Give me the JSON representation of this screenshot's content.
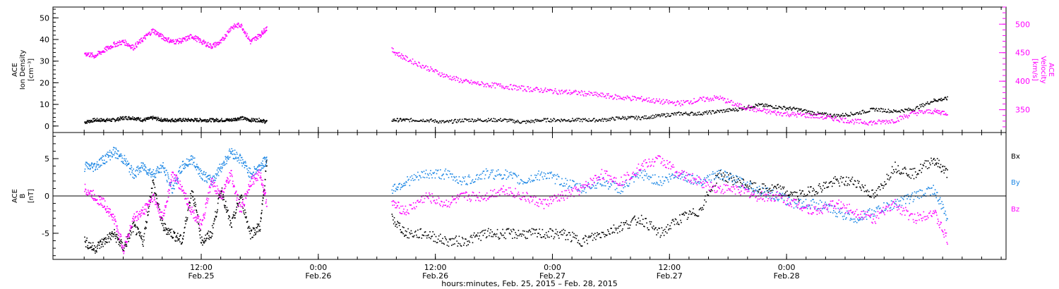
{
  "chart_data": [
    {
      "type": "scatter",
      "panel": "top",
      "ylabel_left": [
        "ACE",
        "Ion Density",
        "[cm⁻³]"
      ],
      "ylabel_right": [
        "ACE",
        "Velocity",
        "[km/s]"
      ],
      "ylim_left": [
        -3,
        55
      ],
      "yticks_left": [
        0,
        10,
        20,
        30,
        40,
        50
      ],
      "ylim_right": [
        310,
        530
      ],
      "yticks_right": [
        350,
        400,
        450,
        500
      ],
      "colors": {
        "density": "#000000",
        "velocity": "#ff00ff"
      },
      "series": [
        {
          "key": "density",
          "axis": "left",
          "segments": [
            {
              "x": [
                0,
                1,
                2,
                3,
                4,
                5,
                6,
                7,
                8,
                9,
                10,
                11,
                12,
                13,
                14,
                15,
                16,
                17,
                18,
                18.7
              ],
              "y": [
                2,
                3,
                3,
                3,
                4,
                4,
                3,
                4,
                3,
                3,
                3,
                3,
                3,
                3,
                3,
                3,
                4,
                3,
                3,
                2
              ]
            },
            {
              "x": [
                31.5,
                33,
                35,
                37,
                39,
                41,
                43,
                45,
                47,
                49,
                51,
                53,
                55,
                57,
                59,
                61,
                63,
                65,
                67,
                69,
                71,
                73,
                75,
                77,
                79,
                81,
                83,
                85,
                87,
                88.5
              ],
              "y": [
                3,
                3,
                3,
                2,
                3,
                3,
                3,
                2,
                3,
                3,
                3,
                3,
                4,
                4,
                5,
                6,
                6,
                7,
                8,
                10,
                9,
                8,
                6,
                5,
                6,
                8,
                7,
                8,
                12,
                13
              ]
            }
          ]
        },
        {
          "key": "velocity",
          "axis": "right",
          "segments": [
            {
              "x": [
                0,
                1,
                2,
                3,
                4,
                5,
                6,
                7,
                8,
                9,
                10,
                11,
                12,
                13,
                14,
                15,
                16,
                17,
                18,
                18.7
              ],
              "y": [
                450,
                445,
                455,
                465,
                470,
                460,
                475,
                490,
                478,
                470,
                472,
                480,
                470,
                462,
                470,
                495,
                500,
                470,
                482,
                495
              ]
            },
            {
              "x": [
                31.5,
                33,
                35,
                37,
                39,
                41,
                43,
                45,
                47,
                49,
                51,
                53,
                55,
                57,
                59,
                61,
                63,
                65,
                67,
                69,
                71,
                73,
                75,
                77,
                79,
                81,
                83,
                85,
                87,
                88.5
              ],
              "y": [
                455,
                440,
                425,
                410,
                400,
                395,
                392,
                388,
                385,
                382,
                380,
                376,
                372,
                370,
                365,
                362,
                368,
                372,
                358,
                350,
                345,
                342,
                340,
                335,
                330,
                328,
                332,
                345,
                348,
                345
              ]
            }
          ]
        }
      ]
    },
    {
      "type": "scatter",
      "panel": "bottom",
      "ylabel_left": [
        "ACE",
        "B",
        "[nT]"
      ],
      "ylim": [
        -8.5,
        8.5
      ],
      "yticks": [
        -5,
        0,
        5
      ],
      "zero_line": true,
      "legend": [
        "Bx",
        "By",
        "Bz"
      ],
      "colors": {
        "Bx": "#000000",
        "By": "#1e88e5",
        "Bz": "#ff00ff"
      },
      "series": [
        {
          "name": "Bx",
          "segments": [
            {
              "x": [
                0,
                1,
                2,
                3,
                4,
                5,
                6,
                7,
                8,
                9,
                10,
                11,
                12,
                13,
                14,
                15,
                16,
                17,
                18,
                18.7
              ],
              "y": [
                -6,
                -7,
                -6,
                -5,
                -7,
                -4,
                -6,
                2,
                -4,
                -5,
                -6,
                1,
                -6,
                -5,
                1,
                -4,
                0,
                -5,
                -4,
                5
              ]
            },
            {
              "x": [
                31.5,
                33,
                35,
                37,
                39,
                41,
                43,
                45,
                47,
                49,
                51,
                53,
                55,
                57,
                59,
                61,
                63,
                65,
                67,
                69,
                71,
                73,
                75,
                77,
                79,
                81,
                83,
                85,
                87,
                88.5
              ],
              "y": [
                -3,
                -5,
                -5,
                -6,
                -6,
                -5,
                -5,
                -5,
                -5,
                -5,
                -6,
                -5,
                -4,
                -3,
                -5,
                -3,
                -2,
                3,
                2,
                1,
                1,
                0,
                1,
                2,
                2,
                0,
                4,
                3,
                5,
                3
              ]
            }
          ]
        },
        {
          "name": "By",
          "segments": [
            {
              "x": [
                0,
                1,
                2,
                3,
                4,
                5,
                6,
                7,
                8,
                9,
                10,
                11,
                12,
                13,
                14,
                15,
                16,
                17,
                18,
                18.7
              ],
              "y": [
                4,
                4,
                5,
                6,
                5,
                3,
                4,
                3,
                4,
                1,
                4,
                5,
                3,
                2,
                4,
                6,
                5,
                3,
                4,
                5
              ]
            },
            {
              "x": [
                31.5,
                33,
                35,
                37,
                39,
                41,
                43,
                45,
                47,
                49,
                51,
                53,
                55,
                57,
                59,
                61,
                63,
                65,
                67,
                69,
                71,
                73,
                75,
                77,
                79,
                81,
                83,
                85,
                87,
                88.5
              ],
              "y": [
                1,
                2,
                3,
                3,
                2,
                3,
                3,
                2,
                3,
                2,
                1,
                2,
                1,
                3,
                2,
                3,
                2,
                3,
                2,
                1,
                0,
                -1,
                -1,
                -2,
                -3,
                -2,
                -1,
                0,
                1,
                -3
              ]
            }
          ]
        },
        {
          "name": "Bz",
          "segments": [
            {
              "x": [
                0,
                1,
                2,
                3,
                4,
                5,
                6,
                7,
                8,
                9,
                10,
                11,
                12,
                13,
                14,
                15,
                16,
                17,
                18,
                18.7
              ],
              "y": [
                1,
                0,
                -1,
                -3,
                -7,
                -3,
                -2,
                0,
                -3,
                3,
                1,
                -2,
                -4,
                2,
                0,
                3,
                -2,
                2,
                3,
                -1
              ]
            },
            {
              "x": [
                31.5,
                33,
                35,
                37,
                39,
                41,
                43,
                45,
                47,
                49,
                51,
                53,
                55,
                57,
                59,
                61,
                63,
                65,
                67,
                69,
                71,
                73,
                75,
                77,
                79,
                81,
                83,
                85,
                87,
                88.5
              ],
              "y": [
                -1,
                -2,
                0,
                -1,
                0,
                0,
                1,
                0,
                -1,
                0,
                1,
                3,
                2,
                4,
                5,
                3,
                2,
                1,
                1,
                0,
                0,
                -1,
                -2,
                -1,
                -2,
                -3,
                -1,
                -3,
                -2,
                -6
              ]
            }
          ]
        }
      ]
    }
  ],
  "time_axis": {
    "xlim_hours": [
      -3.2,
      94.5
    ],
    "ticks": [
      {
        "hours": 12,
        "time": "12:00",
        "date": "Feb.25"
      },
      {
        "hours": 24,
        "time": "0:00",
        "date": "Feb.26"
      },
      {
        "hours": 36,
        "time": "12:00",
        "date": "Feb.26"
      },
      {
        "hours": 48,
        "time": "0:00",
        "date": "Feb.27"
      },
      {
        "hours": 60,
        "time": "12:00",
        "date": "Feb.27"
      },
      {
        "hours": 72,
        "time": "0:00",
        "date": "Feb.28"
      }
    ],
    "xlabel": "hours:minutes, Feb. 25, 2015 – Feb. 28, 2015"
  }
}
